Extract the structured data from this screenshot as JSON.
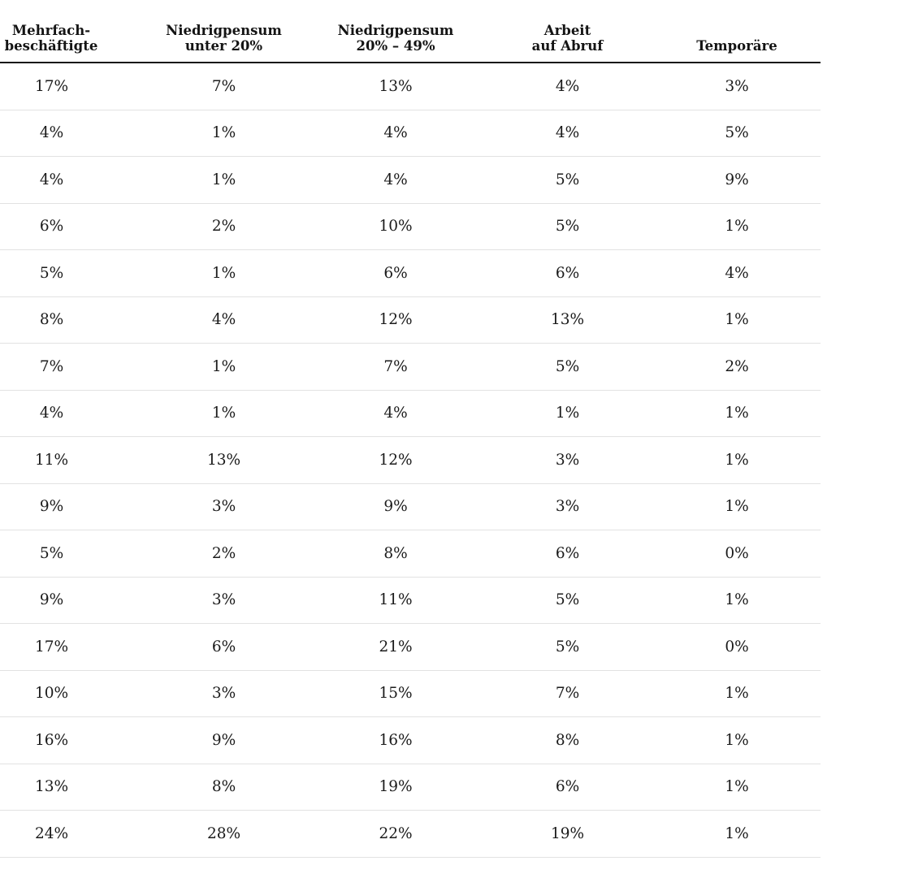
{
  "colors": {
    "background": "#ffffff",
    "text": "#1b1b1b",
    "header_rule": "#161616",
    "row_rule": "#e2e2e2"
  },
  "table": {
    "headers": [
      {
        "line1": "Mehrfach-",
        "line2": "beschäftigte"
      },
      {
        "line1": "Niedrigpensum",
        "line2": "unter 20%"
      },
      {
        "line1": "Niedrigpensum",
        "line2": "20% – 49%"
      },
      {
        "line1": "Arbeit",
        "line2": "auf Abruf"
      },
      {
        "line1": "Temporäre",
        "line2": ""
      }
    ],
    "rows": [
      [
        "17%",
        "7%",
        "13%",
        "4%",
        "3%"
      ],
      [
        "4%",
        "1%",
        "4%",
        "4%",
        "5%"
      ],
      [
        "4%",
        "1%",
        "4%",
        "5%",
        "9%"
      ],
      [
        "6%",
        "2%",
        "10%",
        "5%",
        "1%"
      ],
      [
        "5%",
        "1%",
        "6%",
        "6%",
        "4%"
      ],
      [
        "8%",
        "4%",
        "12%",
        "13%",
        "1%"
      ],
      [
        "7%",
        "1%",
        "7%",
        "5%",
        "2%"
      ],
      [
        "4%",
        "1%",
        "4%",
        "1%",
        "1%"
      ],
      [
        "11%",
        "13%",
        "12%",
        "3%",
        "1%"
      ],
      [
        "9%",
        "3%",
        "9%",
        "3%",
        "1%"
      ],
      [
        "5%",
        "2%",
        "8%",
        "6%",
        "0%"
      ],
      [
        "9%",
        "3%",
        "11%",
        "5%",
        "1%"
      ],
      [
        "17%",
        "6%",
        "21%",
        "5%",
        "0%"
      ],
      [
        "10%",
        "3%",
        "15%",
        "7%",
        "1%"
      ],
      [
        "16%",
        "9%",
        "16%",
        "8%",
        "1%"
      ],
      [
        "13%",
        "8%",
        "19%",
        "6%",
        "1%"
      ],
      [
        "24%",
        "28%",
        "22%",
        "19%",
        "1%"
      ]
    ]
  },
  "chart_data": {
    "type": "table",
    "unit": "%",
    "columns": [
      "Mehrfach-beschäftigte",
      "Niedrigpensum unter 20%",
      "Niedrigpensum 20% – 49%",
      "Arbeit auf Abruf",
      "Temporäre"
    ],
    "rows": [
      [
        17,
        7,
        13,
        4,
        3
      ],
      [
        4,
        1,
        4,
        4,
        5
      ],
      [
        4,
        1,
        4,
        5,
        9
      ],
      [
        6,
        2,
        10,
        5,
        1
      ],
      [
        5,
        1,
        6,
        6,
        4
      ],
      [
        8,
        4,
        12,
        13,
        1
      ],
      [
        7,
        1,
        7,
        5,
        2
      ],
      [
        4,
        1,
        4,
        1,
        1
      ],
      [
        11,
        13,
        12,
        3,
        1
      ],
      [
        9,
        3,
        9,
        3,
        1
      ],
      [
        5,
        2,
        8,
        6,
        0
      ],
      [
        9,
        3,
        11,
        5,
        1
      ],
      [
        17,
        6,
        21,
        5,
        0
      ],
      [
        10,
        3,
        15,
        7,
        1
      ],
      [
        16,
        9,
        16,
        8,
        1
      ],
      [
        13,
        8,
        19,
        6,
        1
      ],
      [
        24,
        28,
        22,
        19,
        1
      ]
    ],
    "title": "",
    "legend": "none",
    "grid": "horizontal-rules"
  }
}
